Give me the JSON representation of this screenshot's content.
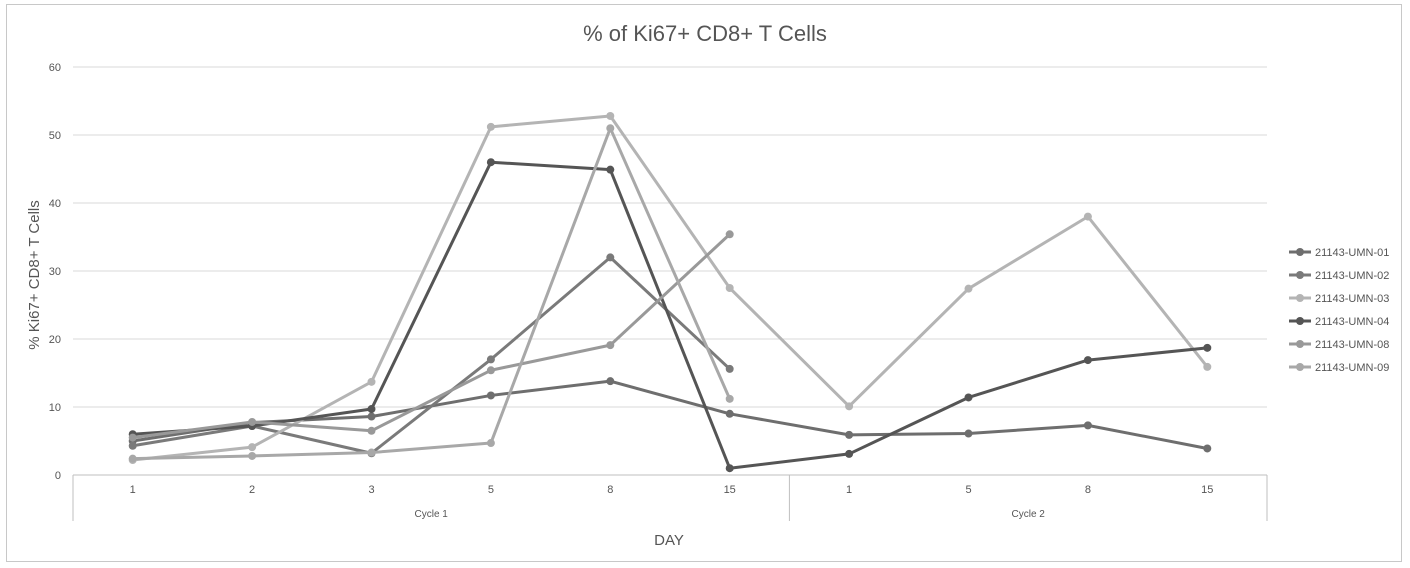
{
  "chart_data": {
    "type": "line",
    "title": "% of Ki67+ CD8+ T Cells",
    "xlabel": "DAY",
    "ylabel": "% Ki67+ CD8+ T Cells",
    "ylim": [
      0,
      60
    ],
    "yticks": [
      "0",
      "10",
      "20",
      "30",
      "40",
      "50",
      "60"
    ],
    "grid": true,
    "legend_position": "right",
    "categories": [
      "1",
      "2",
      "3",
      "5",
      "8",
      "15",
      "1",
      "5",
      "8",
      "15"
    ],
    "groups": [
      {
        "label": "Cycle 1",
        "start": 0,
        "end": 5
      },
      {
        "label": "Cycle 2",
        "start": 6,
        "end": 9
      }
    ],
    "series": [
      {
        "name": "21143-UMN-01",
        "color": "#6e6e6e",
        "values": [
          5.0,
          7.7,
          8.6,
          11.7,
          13.8,
          9.0,
          5.9,
          6.1,
          7.3,
          3.9
        ]
      },
      {
        "name": "21143-UMN-02",
        "color": "#7a7a7a",
        "values": [
          4.3,
          7.2,
          3.2,
          17.0,
          32.0,
          15.6,
          null,
          null,
          null,
          null
        ]
      },
      {
        "name": "21143-UMN-03",
        "color": "#b4b4b4",
        "values": [
          2.2,
          4.1,
          13.7,
          51.2,
          52.8,
          27.5,
          10.1,
          27.4,
          38.0,
          15.9
        ]
      },
      {
        "name": "21143-UMN-04",
        "color": "#555555",
        "values": [
          6.0,
          7.2,
          9.7,
          46.0,
          44.9,
          1.0,
          3.1,
          11.4,
          16.9,
          18.7
        ]
      },
      {
        "name": "21143-UMN-08",
        "color": "#999999",
        "values": [
          5.5,
          7.8,
          6.5,
          15.4,
          19.1,
          35.4,
          null,
          null,
          null,
          null
        ]
      },
      {
        "name": "21143-UMN-09",
        "color": "#a8a8a8",
        "values": [
          2.4,
          2.8,
          3.3,
          4.7,
          51.0,
          11.2,
          null,
          null,
          null,
          null
        ]
      }
    ]
  }
}
